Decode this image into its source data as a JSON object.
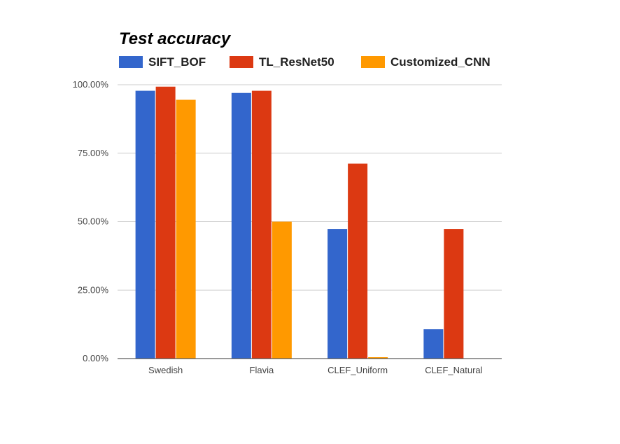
{
  "chart_data": {
    "type": "bar",
    "title": "Test accuracy",
    "xlabel": "",
    "ylabel": "",
    "categories": [
      "Swedish",
      "Flavia",
      "CLEF_Uniform",
      "CLEF_Natural"
    ],
    "series": [
      {
        "name": "SIFT_BOF",
        "color": "#3366cc",
        "values": [
          97.8,
          97.0,
          47.3,
          10.7
        ]
      },
      {
        "name": "TL_ResNet50",
        "color": "#dc3912",
        "values": [
          99.3,
          97.8,
          71.2,
          47.3
        ]
      },
      {
        "name": "Customized_CNN",
        "color": "#ff9900",
        "values": [
          94.5,
          50.0,
          0.5,
          0.0
        ]
      }
    ],
    "ylim": [
      0,
      100
    ],
    "yticks": [
      0,
      25,
      50,
      75,
      100
    ],
    "ytick_labels": [
      "0.00%",
      "25.00%",
      "50.00%",
      "75.00%",
      "100.00%"
    ],
    "grid": true,
    "legend_position": "top"
  }
}
